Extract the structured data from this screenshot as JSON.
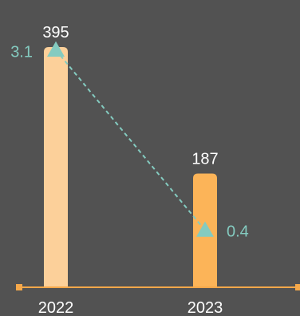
{
  "chart_data": {
    "type": "bar",
    "categories": [
      "2022",
      "2023"
    ],
    "series": [
      {
        "type": "bar",
        "values": [
          395,
          187
        ],
        "labels": [
          "395",
          "187"
        ]
      },
      {
        "type": "line",
        "values": [
          3.1,
          0.4
        ],
        "labels": [
          "3.1",
          "0.4"
        ],
        "marker": "triangle",
        "line_style": "dashed"
      }
    ],
    "ylim_bar": [
      0,
      420
    ],
    "ylim_line": [
      0,
      3.3
    ],
    "grid": false,
    "legend": "none"
  },
  "colors": {
    "background": "#525252",
    "bar_2022": "#FCD09A",
    "bar_2023": "#FCB458",
    "axis": "#F5A84A",
    "line": "#84CBC0",
    "line_label": "#84CBC0",
    "bar_label": "#FFFFFF",
    "tick_label": "#FFFFFF"
  }
}
